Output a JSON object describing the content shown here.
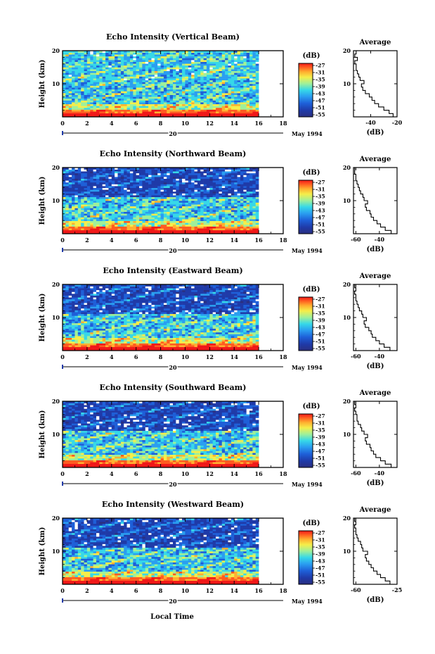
{
  "figure": {
    "xlabel": "Local Time",
    "xtick_labels": [
      "0",
      "2",
      "4",
      "6",
      "8",
      "10",
      "12",
      "14",
      "16",
      "18"
    ],
    "date_label": "May 1994",
    "day_label": "20",
    "colorbar_unit": "(dB)",
    "colorbar_ticks": [
      "-27",
      "-31",
      "-35",
      "-39",
      "-43",
      "-47",
      "-51",
      "-55"
    ],
    "avg_title": "Average",
    "avg_xlabel": "(dB)",
    "ylabel": "Height (km)",
    "ytick_labels": [
      "10",
      "20"
    ]
  },
  "colors": {
    "colormap": [
      "#2a2f80",
      "#1f3aa8",
      "#1e5fd8",
      "#2a9ef0",
      "#36d8e8",
      "#9ff09a",
      "#f5ee4a",
      "#ffb030",
      "#ff5a20",
      "#f01818"
    ],
    "background_data": "#2a2f80"
  },
  "chart_data": [
    {
      "type": "heatmap",
      "title": "Echo Intensity (Vertical Beam)",
      "xlim": [
        0,
        18
      ],
      "ylim": [
        0,
        20
      ],
      "data_end_hour": 16,
      "color_range_db": [
        -55,
        -27
      ],
      "average": {
        "title": "Average",
        "xlim": [
          -53,
          -20
        ],
        "xtick_labels": [
          "-40",
          "-20"
        ],
        "profile": [
          [
            -21,
            0
          ],
          [
            -23,
            1
          ],
          [
            -26,
            2
          ],
          [
            -30,
            3
          ],
          [
            -34,
            4
          ],
          [
            -37,
            5
          ],
          [
            -39,
            6
          ],
          [
            -41,
            7
          ],
          [
            -44,
            8
          ],
          [
            -46,
            9
          ],
          [
            -47,
            10
          ],
          [
            -45,
            11
          ],
          [
            -48,
            12
          ],
          [
            -49,
            13
          ],
          [
            -50,
            14
          ],
          [
            -51,
            15
          ],
          [
            -51,
            16
          ],
          [
            -52,
            17
          ],
          [
            -50,
            18
          ],
          [
            -52,
            19
          ],
          [
            -51,
            20
          ]
        ]
      }
    },
    {
      "type": "heatmap",
      "title": "Echo Intensity (Northward Beam)",
      "xlim": [
        0,
        18
      ],
      "ylim": [
        0,
        20
      ],
      "data_end_hour": 16,
      "color_range_db": [
        -55,
        -27
      ],
      "average": {
        "title": "Average",
        "xlim": [
          -62,
          -25
        ],
        "xtick_labels": [
          "-60",
          "-40"
        ],
        "profile": [
          [
            -26,
            0
          ],
          [
            -30,
            1
          ],
          [
            -35,
            2
          ],
          [
            -39,
            3
          ],
          [
            -42,
            4
          ],
          [
            -45,
            5
          ],
          [
            -47,
            6
          ],
          [
            -48,
            7
          ],
          [
            -51,
            8
          ],
          [
            -52,
            9
          ],
          [
            -50,
            10
          ],
          [
            -53,
            11
          ],
          [
            -54,
            12
          ],
          [
            -56,
            13
          ],
          [
            -57,
            14
          ],
          [
            -58,
            15
          ],
          [
            -59,
            16
          ],
          [
            -60,
            17
          ],
          [
            -60,
            18
          ],
          [
            -61,
            19
          ],
          [
            -61,
            20
          ]
        ]
      }
    },
    {
      "type": "heatmap",
      "title": "Echo Intensity (Eastward Beam)",
      "xlim": [
        -62,
        -25
      ],
      "ylim": [
        0,
        20
      ],
      "data_end_hour": 16,
      "color_range_db": [
        -55,
        -27
      ],
      "average": {
        "title": "Average",
        "xlim": [
          -62,
          -25
        ],
        "xtick_labels": [
          "-60",
          "-40"
        ],
        "profile": [
          [
            -26,
            0
          ],
          [
            -31,
            1
          ],
          [
            -36,
            2
          ],
          [
            -40,
            3
          ],
          [
            -43,
            4
          ],
          [
            -46,
            5
          ],
          [
            -47,
            6
          ],
          [
            -49,
            7
          ],
          [
            -52,
            8
          ],
          [
            -53,
            9
          ],
          [
            -51,
            10
          ],
          [
            -54,
            11
          ],
          [
            -55,
            12
          ],
          [
            -57,
            13
          ],
          [
            -58,
            14
          ],
          [
            -59,
            15
          ],
          [
            -60,
            16
          ],
          [
            -60,
            17
          ],
          [
            -61,
            18
          ],
          [
            -60,
            19
          ],
          [
            -61,
            20
          ]
        ]
      }
    },
    {
      "type": "heatmap",
      "title": "Echo Intensity (Southward Beam)",
      "xlim": [
        0,
        18
      ],
      "ylim": [
        0,
        20
      ],
      "data_end_hour": 16,
      "color_range_db": [
        -55,
        -27
      ],
      "average": {
        "title": "Average",
        "xlim": [
          -62,
          -25
        ],
        "xtick_labels": [
          "-60",
          "-40"
        ],
        "profile": [
          [
            -26,
            0
          ],
          [
            -30,
            1
          ],
          [
            -35,
            2
          ],
          [
            -39,
            3
          ],
          [
            -43,
            4
          ],
          [
            -45,
            5
          ],
          [
            -47,
            6
          ],
          [
            -48,
            7
          ],
          [
            -51,
            8
          ],
          [
            -52,
            9
          ],
          [
            -50,
            10
          ],
          [
            -53,
            11
          ],
          [
            -55,
            12
          ],
          [
            -56,
            13
          ],
          [
            -58,
            14
          ],
          [
            -59,
            15
          ],
          [
            -59,
            16
          ],
          [
            -60,
            17
          ],
          [
            -61,
            18
          ],
          [
            -60,
            19
          ],
          [
            -61,
            20
          ]
        ]
      }
    },
    {
      "type": "heatmap",
      "title": "Echo Intensity (Westward Beam)",
      "xlim": [
        0,
        18
      ],
      "ylim": [
        0,
        20
      ],
      "data_end_hour": 16,
      "color_range_db": [
        -55,
        -27
      ],
      "average": {
        "title": "Average",
        "xlim": [
          -62,
          -25
        ],
        "xtick_labels": [
          "-60",
          "-25"
        ],
        "profile": [
          [
            -26,
            0
          ],
          [
            -31,
            1
          ],
          [
            -35,
            2
          ],
          [
            -39,
            3
          ],
          [
            -42,
            4
          ],
          [
            -45,
            5
          ],
          [
            -47,
            6
          ],
          [
            -49,
            7
          ],
          [
            -51,
            8
          ],
          [
            -52,
            9
          ],
          [
            -50,
            10
          ],
          [
            -54,
            11
          ],
          [
            -55,
            12
          ],
          [
            -56,
            13
          ],
          [
            -58,
            14
          ],
          [
            -59,
            15
          ],
          [
            -60,
            16
          ],
          [
            -60,
            17
          ],
          [
            -61,
            18
          ],
          [
            -60,
            19
          ],
          [
            -61,
            20
          ]
        ]
      }
    }
  ]
}
